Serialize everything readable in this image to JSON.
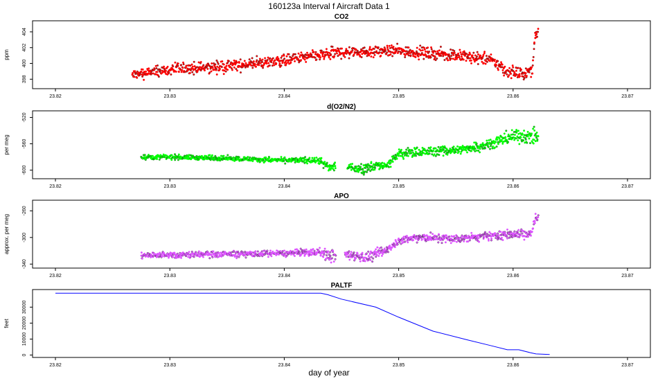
{
  "figure": {
    "title": "160123a   Interval f Aircraft Data 1",
    "xlabel": "day of year"
  },
  "chart_data": [
    {
      "type": "scatter",
      "title": "CO2",
      "ylabel": "ppm",
      "xlim": [
        23.818,
        23.872
      ],
      "ylim": [
        396.8,
        405.4
      ],
      "xticks": [
        23.82,
        23.83,
        23.84,
        23.85,
        23.86,
        23.87
      ],
      "xtick_labels": [
        "23.82",
        "23.83",
        "23.84",
        "23.85",
        "23.86",
        "23.87"
      ],
      "yticks": [
        398,
        400,
        402,
        404
      ],
      "ytick_labels": [
        "398",
        "400",
        "402",
        "404"
      ],
      "color": "#ff0000",
      "x_range": [
        23.8267,
        23.8622
      ],
      "trend": {
        "x": [
          23.8267,
          23.828,
          23.83,
          23.835,
          23.84,
          23.845,
          23.85,
          23.855,
          23.858,
          23.8595,
          23.861,
          23.8617,
          23.8619,
          23.8622
        ],
        "y": [
          398.5,
          398.8,
          399.2,
          399.6,
          400.4,
          401.4,
          401.6,
          401.0,
          400.5,
          399.0,
          398.6,
          399.2,
          403.5,
          404.0
        ]
      },
      "scatter_spread": 0.6
    },
    {
      "type": "scatter",
      "title": "d(O2/N2)",
      "ylabel": "per meg",
      "xlim": [
        23.818,
        23.872
      ],
      "ylim": [
        -613,
        -510
      ],
      "xticks": [
        23.82,
        23.83,
        23.84,
        23.85,
        23.86,
        23.87
      ],
      "xtick_labels": [
        "23.82",
        "23.83",
        "23.84",
        "23.85",
        "23.86",
        "23.87"
      ],
      "yticks": [
        -600,
        -560,
        -520
      ],
      "ytick_labels": [
        "-600",
        "-560",
        "-520"
      ],
      "color": "#00ff00",
      "x_range": [
        23.8275,
        23.8622
      ],
      "gaps": [
        [
          23.8445,
          23.8455
        ]
      ],
      "trend": {
        "x": [
          23.8275,
          23.83,
          23.835,
          23.84,
          23.843,
          23.8435,
          23.844,
          23.8445,
          23.8455,
          23.847,
          23.8475,
          23.849,
          23.85,
          23.852,
          23.855,
          23.858,
          23.86,
          23.862
        ],
        "y": [
          -580,
          -580,
          -582,
          -585,
          -585,
          -592,
          -596,
          -593,
          -596,
          -598,
          -594,
          -592,
          -576,
          -572,
          -570,
          -560,
          -548,
          -550
        ],
        "spread": [
          3,
          3,
          3,
          3,
          4,
          6,
          6,
          6,
          5,
          6,
          6,
          5,
          7,
          6,
          6,
          7,
          8,
          10
        ]
      }
    },
    {
      "type": "scatter",
      "title": "APO",
      "ylabel": "approx. per meg",
      "xlim": [
        23.818,
        23.872
      ],
      "ylim": [
        -346,
        -244
      ],
      "xticks": [
        23.82,
        23.83,
        23.84,
        23.85,
        23.86,
        23.87
      ],
      "xtick_labels": [
        "23.82",
        "23.83",
        "23.84",
        "23.85",
        "23.86",
        "23.87"
      ],
      "yticks": [
        -340,
        -300,
        -260
      ],
      "ytick_labels": [
        "-340",
        "-300",
        "-260"
      ],
      "color": "#dd55ff",
      "x_range": [
        23.8275,
        23.8622
      ],
      "gaps": [
        [
          23.8445,
          23.8453
        ]
      ],
      "trend": {
        "x": [
          23.8275,
          23.83,
          23.835,
          23.84,
          23.843,
          23.8437,
          23.844,
          23.8453,
          23.847,
          23.848,
          23.849,
          23.85,
          23.852,
          23.855,
          23.858,
          23.86,
          23.8615,
          23.862
        ],
        "y": [
          -327,
          -326,
          -325,
          -324,
          -322,
          -326,
          -328,
          -326,
          -330,
          -326,
          -318,
          -304,
          -300,
          -302,
          -298,
          -295,
          -294,
          -272
        ],
        "spread": [
          4,
          4,
          4,
          4,
          5,
          7,
          8,
          6,
          7,
          7,
          6,
          5,
          5,
          5,
          5,
          6,
          7,
          10
        ]
      }
    },
    {
      "type": "line",
      "title": "PALTF",
      "ylabel": "feet",
      "xlim": [
        23.818,
        23.872
      ],
      "ylim": [
        -1500,
        41000
      ],
      "xticks": [
        23.82,
        23.83,
        23.84,
        23.85,
        23.86,
        23.87
      ],
      "xtick_labels": [
        "23.82",
        "23.83",
        "23.84",
        "23.85",
        "23.86",
        "23.87"
      ],
      "yticks": [
        0,
        10000,
        20000,
        30000
      ],
      "ytick_labels": [
        "0",
        "10000",
        "20000",
        "30000"
      ],
      "color": "#0000ff",
      "x": [
        23.82,
        23.8432,
        23.8438,
        23.845,
        23.848,
        23.85,
        23.853,
        23.856,
        23.858,
        23.8595,
        23.8605,
        23.8615,
        23.862,
        23.8632
      ],
      "y": [
        38700,
        38700,
        37800,
        35000,
        30000,
        23700,
        15000,
        9500,
        6000,
        3300,
        3300,
        1500,
        700,
        300
      ]
    }
  ]
}
